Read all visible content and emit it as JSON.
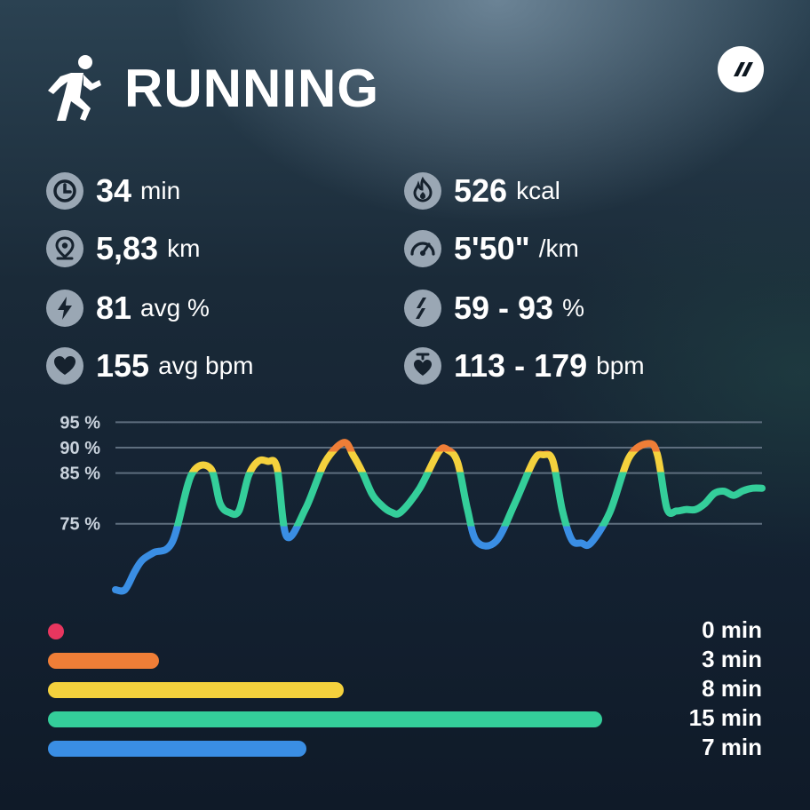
{
  "header": {
    "title": "RUNNING",
    "icon": "running-person-icon"
  },
  "logo": {
    "icon": "app-logo-icon"
  },
  "stats": {
    "duration": {
      "value": "34",
      "unit": "min",
      "icon": "clock-icon"
    },
    "calories": {
      "value": "526",
      "unit": "kcal",
      "icon": "flame-icon"
    },
    "distance": {
      "value": "5,83",
      "unit": "km",
      "icon": "location-pin-icon"
    },
    "pace": {
      "value": "5'50\"",
      "unit": "/km",
      "icon": "speedometer-icon"
    },
    "intensity_avg": {
      "value": "81",
      "unit": "avg %",
      "icon": "lightning-icon"
    },
    "intensity_range": {
      "value": "59 - 93",
      "unit": "%",
      "icon": "range-icon"
    },
    "heart_rate_avg": {
      "value": "155",
      "unit": "avg bpm",
      "icon": "heart-icon"
    },
    "heart_rate_range": {
      "value": "113 - 179",
      "unit": "bpm",
      "icon": "heart-range-icon"
    }
  },
  "chart_data": {
    "type": "line",
    "title": "",
    "xlabel": "",
    "ylabel": "",
    "y_ticks": [
      "95 %",
      "90 %",
      "85 %",
      "75 %"
    ],
    "y_tick_values": [
      95,
      90,
      85,
      75
    ],
    "ylim": [
      62,
      97
    ],
    "xlim": [
      0,
      34
    ],
    "grid": true,
    "series": [
      {
        "x": [
          0,
          0.5,
          1,
          1.4,
          2,
          3,
          4,
          5,
          5.5,
          6,
          6.5,
          7,
          7.5,
          8,
          8.5,
          9,
          10,
          11,
          12,
          12.5,
          13,
          13.5,
          14,
          14.5,
          15,
          16,
          17,
          17.5,
          18,
          18.5,
          19,
          20,
          21,
          22,
          22.5,
          23,
          23.5,
          24,
          24.5,
          25,
          26,
          27,
          28,
          28.5,
          29,
          29.5,
          30,
          30.5,
          31,
          31.5,
          32,
          32.5,
          33,
          33.5,
          34
        ],
        "values": [
          62,
          62,
          65.5,
          67.8,
          69.3,
          71.5,
          84.7,
          85.9,
          79,
          77.2,
          77.6,
          84.5,
          87.3,
          87.3,
          86,
          72.5,
          78,
          87,
          91,
          88.5,
          85,
          80.8,
          78.6,
          77.3,
          77.3,
          82,
          89.2,
          89.5,
          87,
          78,
          71.5,
          71.5,
          79,
          87.5,
          88.6,
          87.4,
          77.6,
          71.8,
          71.2,
          71.2,
          77.3,
          88,
          90.8,
          88.6,
          78,
          77.5,
          77.8,
          77.8,
          79,
          81,
          81.4,
          80.6,
          81.5,
          82,
          82
        ]
      }
    ],
    "zone_colors": {
      "red": "#e8365f",
      "orange": "#ef7e37",
      "yellow": "#f4d13d",
      "green": "#34ce9a",
      "blue": "#3a8ee4"
    }
  },
  "zones": [
    {
      "name": "red",
      "color": "#e8365f",
      "minutes": 0,
      "label": "0 min"
    },
    {
      "name": "orange",
      "color": "#ef7e37",
      "minutes": 3,
      "label": "3 min"
    },
    {
      "name": "yellow",
      "color": "#f4d13d",
      "minutes": 8,
      "label": "8 min"
    },
    {
      "name": "green",
      "color": "#34ce9a",
      "minutes": 15,
      "label": "15 min"
    },
    {
      "name": "blue",
      "color": "#3a8ee4",
      "minutes": 7,
      "label": "7 min"
    }
  ]
}
